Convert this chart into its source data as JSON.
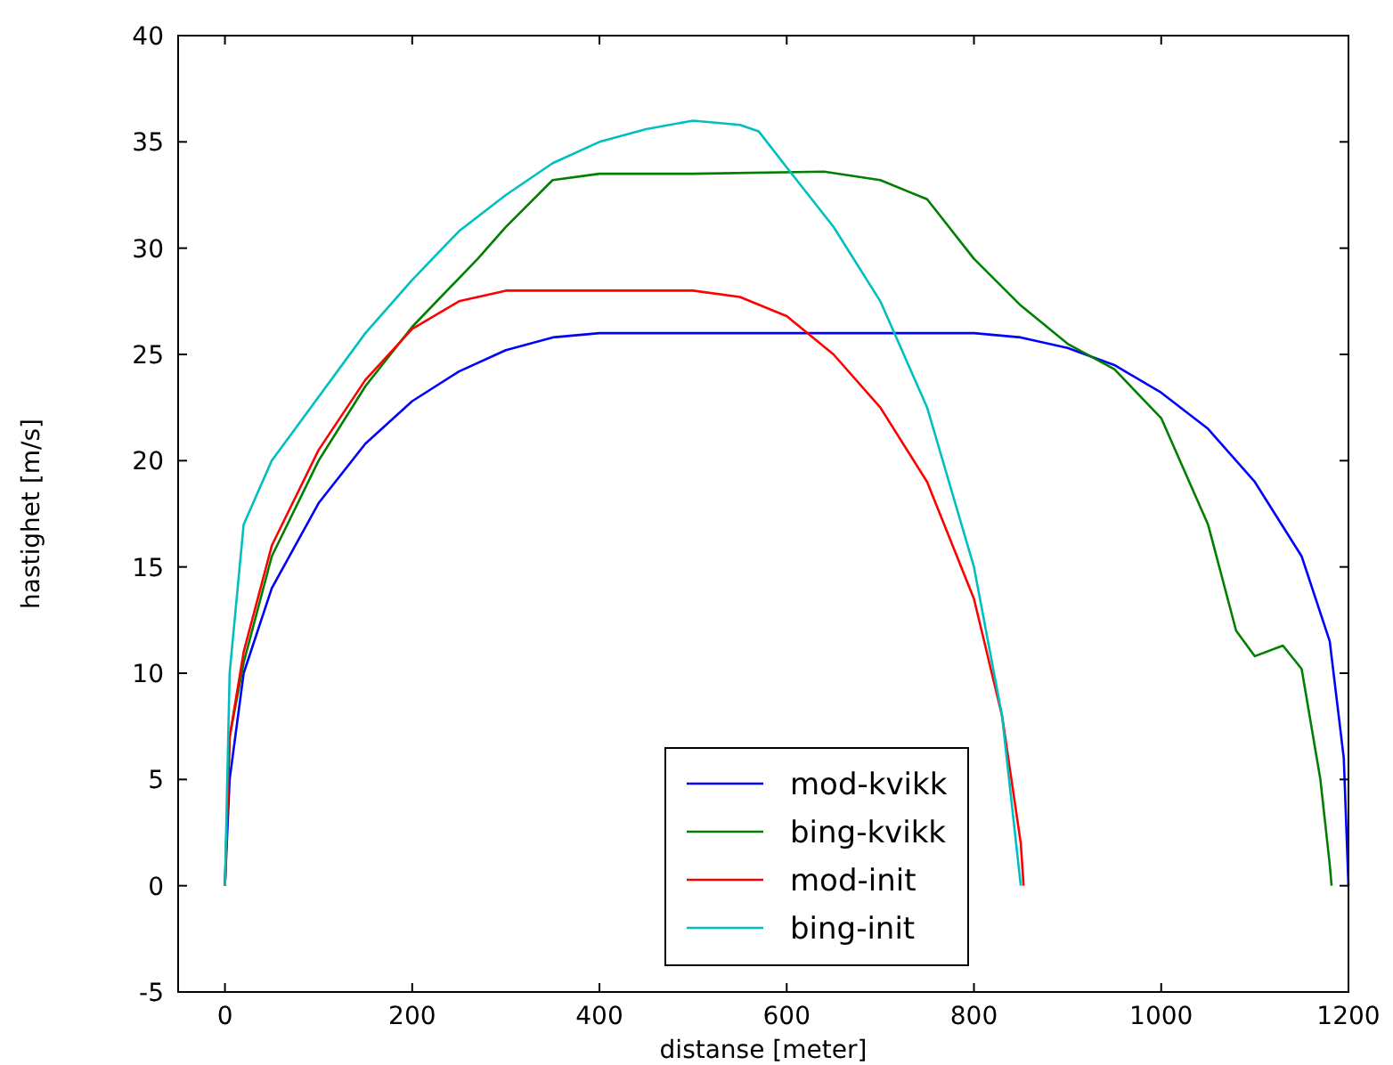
{
  "chart_data": {
    "type": "line",
    "xlabel": "distanse [meter]",
    "ylabel": "hastighet [m/s]",
    "xlim": [
      -50,
      1200
    ],
    "xticks": [
      0,
      200,
      400,
      600,
      800,
      1000,
      1200
    ],
    "ylim": [
      -5,
      40
    ],
    "yticks": [
      -5,
      0,
      5,
      10,
      15,
      20,
      25,
      30,
      35,
      40
    ],
    "grid": false,
    "legend": "bottom",
    "marker": "none",
    "line_style": "solid",
    "series": [
      {
        "name": "mod-kvikk",
        "color": "#0000ff",
        "x": [
          0,
          5,
          20,
          50,
          100,
          150,
          200,
          250,
          300,
          350,
          400,
          800,
          850,
          900,
          950,
          1000,
          1050,
          1100,
          1150,
          1180,
          1195,
          1200
        ],
        "values": [
          0,
          5,
          10,
          14,
          18,
          20.8,
          22.8,
          24.2,
          25.2,
          25.8,
          26,
          26,
          25.8,
          25.3,
          24.5,
          23.2,
          21.5,
          19,
          15.5,
          11.5,
          6,
          0
        ]
      },
      {
        "name": "bing-kvikk",
        "color": "#007f00",
        "x": [
          0,
          5,
          20,
          50,
          100,
          150,
          200,
          270,
          300,
          350,
          400,
          500,
          640,
          700,
          750,
          800,
          850,
          900,
          950,
          1000,
          1050,
          1080,
          1100,
          1130,
          1150,
          1170,
          1180,
          1182
        ],
        "values": [
          0,
          7,
          10.5,
          15.5,
          20,
          23.5,
          26.3,
          29.5,
          31,
          33.2,
          33.5,
          33.5,
          33.6,
          33.2,
          32.3,
          29.5,
          27.3,
          25.5,
          24.3,
          22,
          17,
          12,
          10.8,
          11.3,
          10.2,
          5,
          1,
          0
        ]
      },
      {
        "name": "mod-init",
        "color": "#ff0000",
        "x": [
          0,
          5,
          20,
          50,
          100,
          150,
          200,
          250,
          300,
          500,
          550,
          600,
          650,
          700,
          750,
          800,
          830,
          850,
          853
        ],
        "values": [
          0,
          7,
          11,
          16,
          20.5,
          23.8,
          26.2,
          27.5,
          28,
          28,
          27.7,
          26.8,
          25,
          22.5,
          19,
          13.5,
          8,
          2,
          0
        ]
      },
      {
        "name": "bing-init",
        "color": "#00bfbf",
        "x": [
          0,
          5,
          20,
          50,
          100,
          150,
          200,
          250,
          300,
          350,
          400,
          450,
          500,
          550,
          570,
          600,
          650,
          700,
          750,
          800,
          830,
          845,
          850
        ],
        "values": [
          0,
          10,
          17,
          20,
          23,
          26,
          28.5,
          30.8,
          32.5,
          34,
          35,
          35.6,
          36,
          35.8,
          35.5,
          33.8,
          31,
          27.5,
          22.5,
          15,
          8,
          2,
          0
        ]
      }
    ]
  }
}
